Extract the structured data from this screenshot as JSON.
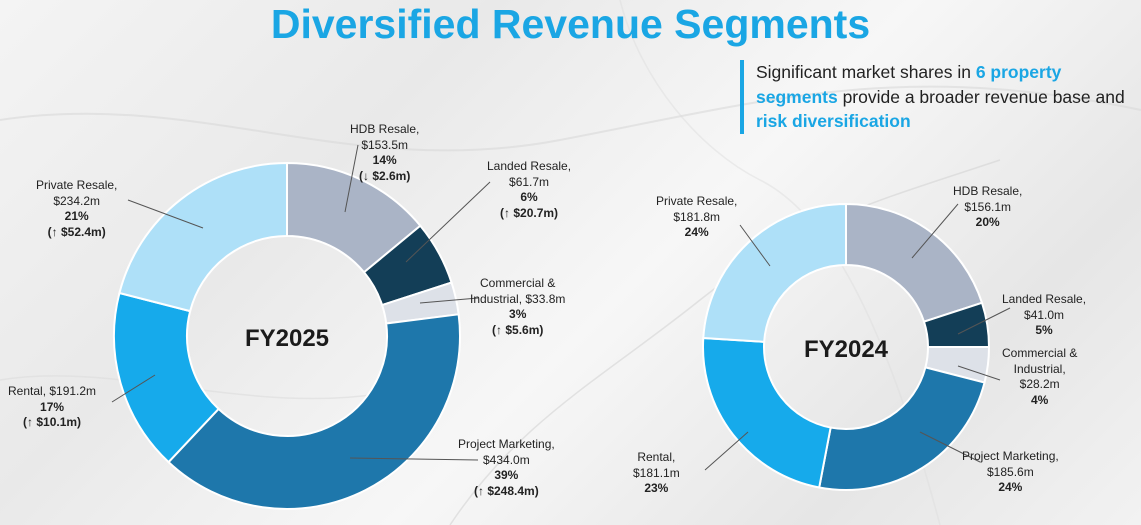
{
  "title": "Diversified Revenue Segments",
  "callout": {
    "p1": "Significant market shares in ",
    "h1": "6 property segments",
    "p2": " provide a broader revenue base and ",
    "h2": "risk diversification"
  },
  "colors": {
    "hdb": "#aab4c6",
    "landed": "#133e57",
    "commercial": "#dde1e8",
    "project": "#1e77ab",
    "rental": "#16aaeb",
    "private": "#aee0f8"
  },
  "chart_data": [
    {
      "type": "pie",
      "center_label": "FY2025",
      "slices": [
        {
          "key": "hdb",
          "name": "HDB Resale",
          "amount": "$153.5m",
          "share": "14%",
          "change": "(↓ $2.6m)",
          "value": 14
        },
        {
          "key": "landed",
          "name": "Landed Resale",
          "amount": "$61.7m",
          "share": "6%",
          "change": "(↑ $20.7m)",
          "value": 6
        },
        {
          "key": "commercial",
          "name": "Commercial & Industrial",
          "amount": "$33.8m",
          "share": "3%",
          "change": "(↑ $5.6m)",
          "value": 3
        },
        {
          "key": "project",
          "name": "Project Marketing",
          "amount": "$434.0m",
          "share": "39%",
          "change": "(↑ $248.4m)",
          "value": 39
        },
        {
          "key": "rental",
          "name": "Rental",
          "amount": "$191.2m",
          "share": "17%",
          "change": "(↑ $10.1m)",
          "value": 17
        },
        {
          "key": "private",
          "name": "Private Resale",
          "amount": "$234.2m",
          "share": "21%",
          "change": "(↑ $52.4m)",
          "value": 21
        }
      ]
    },
    {
      "type": "pie",
      "center_label": "FY2024",
      "slices": [
        {
          "key": "hdb",
          "name": "HDB Resale",
          "amount": "$156.1m",
          "share": "20%",
          "value": 20
        },
        {
          "key": "landed",
          "name": "Landed Resale",
          "amount": "$41.0m",
          "share": "5%",
          "value": 5
        },
        {
          "key": "commercial",
          "name": "Commercial & Industrial",
          "amount": "$28.2m",
          "share": "4%",
          "value": 4
        },
        {
          "key": "project",
          "name": "Project Marketing",
          "amount": "$185.6m",
          "share": "24%",
          "value": 24
        },
        {
          "key": "rental",
          "name": "Rental",
          "amount": "$181.1m",
          "share": "23%",
          "value": 23
        },
        {
          "key": "private",
          "name": "Private Resale",
          "amount": "$181.8m",
          "share": "24%",
          "value": 24
        }
      ]
    }
  ],
  "labels": {
    "fy25": {
      "hdb": {
        "l1": "HDB Resale,",
        "l2": "$153.5m",
        "l3": "14%",
        "l4": "(↓ $2.6m)"
      },
      "landed": {
        "l1": "Landed Resale,",
        "l2": "$61.7m",
        "l3": "6%",
        "l4": "(↑ $20.7m)"
      },
      "commercial": {
        "l1": "Commercial &",
        "l2": "Industrial, $33.8m",
        "l3": "3%",
        "l4": "(↑ $5.6m)"
      },
      "project": {
        "l1": "Project Marketing,",
        "l2": "$434.0m",
        "l3": "39%",
        "l4": "(↑ $248.4m)"
      },
      "rental": {
        "l1": "Rental, $191.2m",
        "l2": "17%",
        "l3": "(↑ $10.1m)"
      },
      "private": {
        "l1": "Private Resale,",
        "l2": "$234.2m",
        "l3": "21%",
        "l4": "(↑ $52.4m)"
      }
    },
    "fy24": {
      "hdb": {
        "l1": "HDB Resale,",
        "l2": "$156.1m",
        "l3": "20%"
      },
      "landed": {
        "l1": "Landed Resale,",
        "l2": "$41.0m",
        "l3": "5%"
      },
      "commercial": {
        "l1": "Commercial &",
        "l2": "Industrial,",
        "l3": "$28.2m",
        "l4": "4%"
      },
      "project": {
        "l1": "Project Marketing,",
        "l2": "$185.6m",
        "l3": "24%"
      },
      "rental": {
        "l1": "Rental,",
        "l2": "$181.1m",
        "l3": "23%"
      },
      "private": {
        "l1": "Private Resale,",
        "l2": "$181.8m",
        "l3": "24%"
      }
    }
  }
}
